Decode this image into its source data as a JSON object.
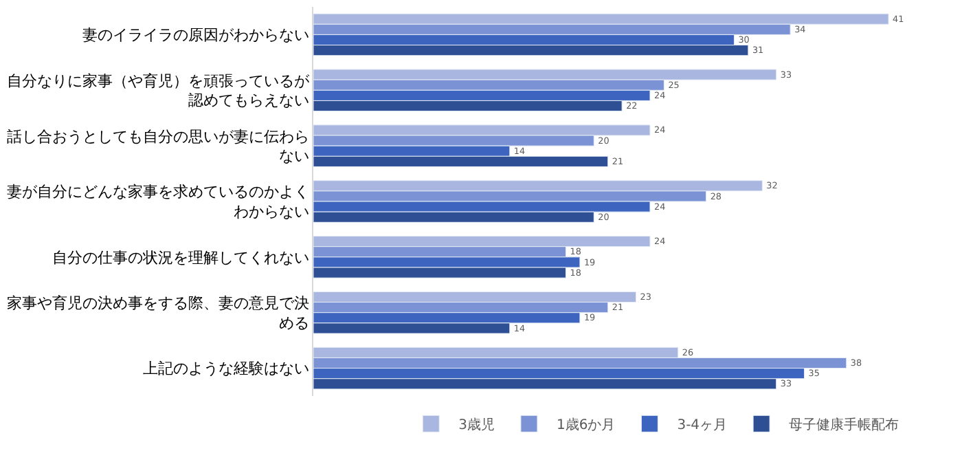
{
  "chart_data": {
    "type": "bar",
    "orientation": "horizontal",
    "data_labels": true,
    "legend": "bottom",
    "categories": [
      "妻のイライラの原因がわからない",
      "自分なりに家事（や育児）を頑張っているが認めてもらえない",
      "話し合おうとしても自分の思いが妻に伝わらない",
      "妻が自分にどんな家事を求めているのかよくわからない",
      "自分の仕事の状況を理解してくれない",
      "家事や育児の決め事をする際、妻の意見で決める",
      "上記のような経験はない"
    ],
    "series": [
      {
        "name": "3歳児",
        "color": "#a9b6e0",
        "values": [
          41,
          33,
          24,
          32,
          24,
          23,
          26
        ]
      },
      {
        "name": "1歳6か月",
        "color": "#7b92d4",
        "values": [
          34,
          25,
          20,
          28,
          18,
          21,
          38
        ]
      },
      {
        "name": "3-4ヶ月",
        "color": "#3d64bf",
        "values": [
          30,
          24,
          14,
          24,
          19,
          19,
          35
        ]
      },
      {
        "name": "母子健康手帳配布",
        "color": "#2e4f93",
        "values": [
          31,
          22,
          21,
          20,
          18,
          14,
          33
        ]
      }
    ]
  }
}
